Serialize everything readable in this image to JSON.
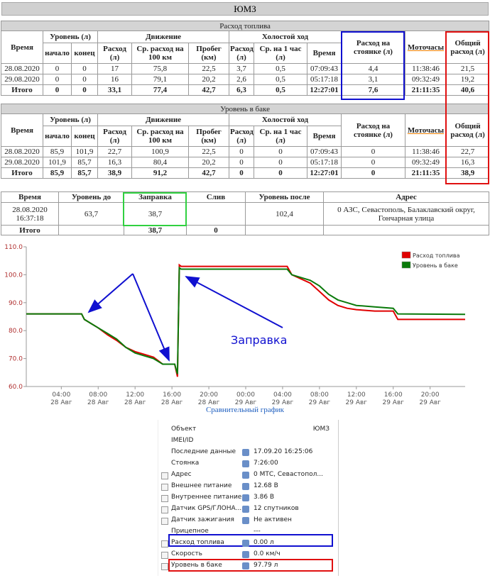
{
  "header": {
    "title": "ЮМЗ"
  },
  "table1": {
    "title": "Расход топлива",
    "head1": [
      "Время",
      "Уровень (л)",
      "Движение",
      "Холостой ход",
      "Расход на стоянке (л)",
      "Моточасы",
      "Общий расход (л)"
    ],
    "head2": [
      "начало",
      "конец",
      "Расход (л)",
      "Ср. расход на 100 км",
      "Пробег (км)",
      "Расход (л)",
      "Ср. на 1 час (л)",
      "Время"
    ],
    "rows": [
      [
        "28.08.2020",
        "0",
        "0",
        "17",
        "75,8",
        "22,5",
        "3,7",
        "0,5",
        "07:09:43",
        "4,4",
        "11:38:46",
        "21,5"
      ],
      [
        "29.08.2020",
        "0",
        "0",
        "16",
        "79,1",
        "20,2",
        "2,6",
        "0,5",
        "05:17:18",
        "3,1",
        "09:32:49",
        "19,2"
      ],
      [
        "Итого",
        "0",
        "0",
        "33,1",
        "77,4",
        "42,7",
        "6,3",
        "0,5",
        "12:27:01",
        "7,6",
        "21:11:35",
        "40,6"
      ]
    ]
  },
  "table2": {
    "title": "Уровень в баке",
    "head1": [
      "Время",
      "Уровень (л)",
      "Движение",
      "Холостой ход",
      "Расход на стоянке (л)",
      "Моточасы",
      "Общий расход (л)"
    ],
    "head2": [
      "начало",
      "конец",
      "Расход (л)",
      "Ср. расход на 100 км",
      "Пробег (км)",
      "Расход (л)",
      "Ср. на 1 час (л)",
      "Время"
    ],
    "rows": [
      [
        "28.08.2020",
        "85,9",
        "101,9",
        "22,7",
        "100,9",
        "22,5",
        "0",
        "0",
        "07:09:43",
        "0",
        "11:38:46",
        "22,7"
      ],
      [
        "29.08.2020",
        "101,9",
        "85,7",
        "16,3",
        "80,4",
        "20,2",
        "0",
        "0",
        "05:17:18",
        "0",
        "09:32:49",
        "16,3"
      ],
      [
        "Итого",
        "85,9",
        "85,7",
        "38,9",
        "91,2",
        "42,7",
        "0",
        "0",
        "12:27:01",
        "0",
        "21:11:35",
        "38,9"
      ]
    ]
  },
  "table3": {
    "head": [
      "Время",
      "Уровень до",
      "Заправка",
      "Слив",
      "Уровень после",
      "Адрес"
    ],
    "rows": [
      [
        "28.08.2020 16:37:18",
        "63,7",
        "38,7",
        null,
        "102,4",
        "0 АЗС, Севастополь, Балаклавский округ, Гончарная улица"
      ],
      [
        "Итого",
        null,
        "38,7",
        "0",
        null,
        null
      ]
    ]
  },
  "chart_data": {
    "type": "line",
    "caption": "Сравнительный график",
    "annotation": "Заправка",
    "xlim": [
      0.2,
      47.8
    ],
    "ylim": [
      60,
      110
    ],
    "xticks": [
      {
        "value": 4,
        "label": "04:00",
        "date": "28 Авг"
      },
      {
        "value": 8,
        "label": "08:00",
        "date": "28 Авг"
      },
      {
        "value": 12,
        "label": "12:00",
        "date": "28 Авг"
      },
      {
        "value": 16,
        "label": "16:00",
        "date": "28 Авг"
      },
      {
        "value": 20,
        "label": "20:00",
        "date": "28 Авг"
      },
      {
        "value": 24,
        "label": "00:00",
        "date": "29 Авг"
      },
      {
        "value": 28,
        "label": "04:00",
        "date": "29 Авг"
      },
      {
        "value": 32,
        "label": "08:00",
        "date": "29 Авг"
      },
      {
        "value": 36,
        "label": "12:00",
        "date": "29 Авг"
      },
      {
        "value": 40,
        "label": "16:00",
        "date": "29 Авг"
      },
      {
        "value": 44,
        "label": "20:00",
        "date": "29 Авг"
      }
    ],
    "yticks": [
      {
        "value": 60,
        "label": "60.0"
      },
      {
        "value": 70,
        "label": "70.0"
      },
      {
        "value": 80,
        "label": "80.0"
      },
      {
        "value": 90,
        "label": "90.0"
      },
      {
        "value": 100,
        "label": "100.0"
      },
      {
        "value": 110,
        "label": "110.0"
      }
    ],
    "series": [
      {
        "name": "Расход топлива",
        "color": "#e00000",
        "x": [
          0.2,
          6.2,
          6.5,
          7,
          8,
          9,
          10,
          11,
          12,
          13,
          14,
          15,
          16.3,
          16.6,
          16.8,
          17,
          28.5,
          29,
          31,
          32,
          33,
          34,
          35,
          36,
          38,
          40,
          40.5,
          47.8
        ],
        "values": [
          86,
          86,
          84,
          83,
          81,
          78.5,
          76.5,
          74,
          72.5,
          71.5,
          70.5,
          68,
          68,
          63.5,
          103.5,
          103,
          103,
          100,
          97,
          94,
          91,
          89,
          88,
          87.5,
          87,
          87,
          84,
          84
        ]
      },
      {
        "name": "Уровень в баке",
        "color": "#0a7a0a",
        "x": [
          0.2,
          6.2,
          6.5,
          7,
          8,
          9,
          10,
          11,
          12,
          13,
          14,
          15,
          16.3,
          16.6,
          16.8,
          17,
          28.5,
          29,
          31,
          32,
          33,
          34,
          35,
          36,
          38,
          40,
          40.5,
          47.8
        ],
        "values": [
          86,
          86,
          84,
          83,
          81,
          79,
          77,
          74,
          72,
          71,
          70,
          68,
          68,
          64.5,
          102.5,
          102,
          102,
          100,
          98,
          96,
          93,
          91,
          90,
          89,
          88.5,
          88,
          86,
          85.8
        ]
      }
    ]
  },
  "panel": {
    "rows": [
      {
        "label": "Объект",
        "value": "ЮМЗ"
      },
      {
        "label": "IMEI/ID"
      },
      {
        "label": "Последние данные",
        "value": "17.09.20 16:25:06"
      },
      {
        "label": "Стоянка",
        "value": "7:26:00"
      },
      {
        "label": "Адрес",
        "value": "0 МТС, Севастопол..."
      },
      {
        "label": "Внешнее питание",
        "value": "12.68 В"
      },
      {
        "label": "Внутреннее питание",
        "value": "3.86 В"
      },
      {
        "label": "Датчик GPS/ГЛОНА...",
        "value": "12 спутников"
      },
      {
        "label": "Датчик зажигания",
        "value": "Не активен"
      },
      {
        "label": "Прицепное",
        "value": "---"
      },
      {
        "label": "Расход топлива",
        "value": "0.00 л"
      },
      {
        "label": "Скорость",
        "value": "0.0 км/ч"
      },
      {
        "label": "Уровень в баке",
        "value": "97.79 л"
      }
    ]
  }
}
